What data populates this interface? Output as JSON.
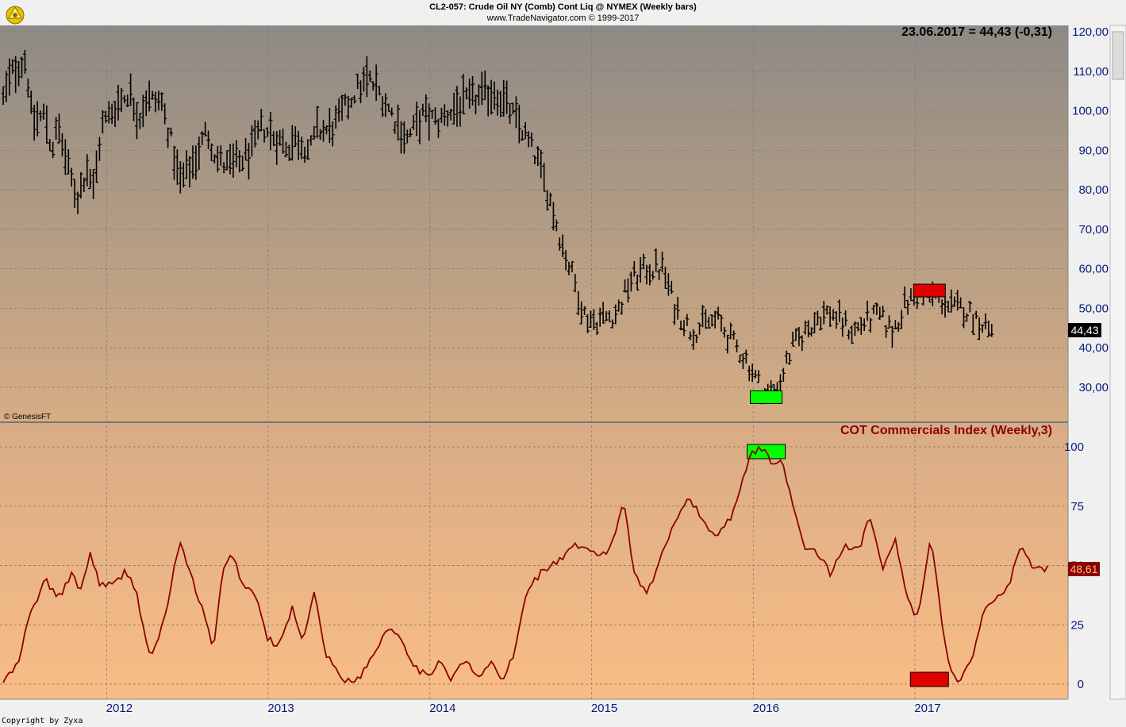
{
  "header": {
    "title": "CL2-057:  Crude Oil NY (Comb) Cont Liq @ NYMEX  (Weekly bars)",
    "subtitle": "www.TradeNavigator.com © 1999-2017"
  },
  "price_panel": {
    "readout": "23.06.2017 = 44,43 (-0,31)",
    "last_label": "44,43",
    "watermark": "© GenesisFT"
  },
  "cot_panel": {
    "title": "COT Commercials Index (Weekly,3)",
    "last_label": "48,61"
  },
  "footer": {
    "copyright": "Copyright by Zyxa"
  },
  "colors": {
    "price_bars": "#000000",
    "cot_line": "#8b0000",
    "signal_green": "#00ff00",
    "signal_red": "#e00000",
    "axis_text": "#0a1a7a",
    "cot_title": "#8b0000"
  },
  "chart_data": [
    {
      "type": "ohlc",
      "name": "price",
      "ylim": [
        22,
        122
      ],
      "yticks": [
        "120,00",
        "110,00",
        "100,00",
        "90,00",
        "80,00",
        "70,00",
        "60,00",
        "50,00",
        "40,00",
        "30,00"
      ],
      "ytick_values": [
        120,
        110,
        100,
        90,
        80,
        70,
        60,
        50,
        40,
        30
      ],
      "x_start": 2011.36,
      "x_end": 2017.48,
      "xticks": [
        "2012",
        "2013",
        "2014",
        "2015",
        "2016",
        "2017"
      ],
      "xtick_values": [
        2012,
        2013,
        2014,
        2015,
        2016,
        2017
      ],
      "anchors": [
        [
          2011.36,
          103
        ],
        [
          2011.42,
          110
        ],
        [
          2011.5,
          113
        ],
        [
          2011.54,
          97
        ],
        [
          2011.62,
          99
        ],
        [
          2011.66,
          90
        ],
        [
          2011.7,
          96
        ],
        [
          2011.77,
          84
        ],
        [
          2011.82,
          78
        ],
        [
          2011.88,
          86
        ],
        [
          2011.92,
          80
        ],
        [
          2011.97,
          96
        ],
        [
          2012.05,
          101
        ],
        [
          2012.14,
          105
        ],
        [
          2012.2,
          98
        ],
        [
          2012.24,
          103
        ],
        [
          2012.34,
          102
        ],
        [
          2012.4,
          92
        ],
        [
          2012.45,
          82
        ],
        [
          2012.49,
          84
        ],
        [
          2012.55,
          88
        ],
        [
          2012.62,
          95
        ],
        [
          2012.68,
          88
        ],
        [
          2012.74,
          86
        ],
        [
          2012.82,
          87
        ],
        [
          2012.9,
          90
        ],
        [
          2012.96,
          96
        ],
        [
          2013.05,
          93
        ],
        [
          2013.12,
          91
        ],
        [
          2013.18,
          93
        ],
        [
          2013.26,
          90
        ],
        [
          2013.3,
          95
        ],
        [
          2013.38,
          95
        ],
        [
          2013.44,
          98
        ],
        [
          2013.54,
          105
        ],
        [
          2013.62,
          108
        ],
        [
          2013.7,
          104
        ],
        [
          2013.78,
          98
        ],
        [
          2013.86,
          93
        ],
        [
          2013.96,
          99
        ],
        [
          2014.05,
          97
        ],
        [
          2014.16,
          101
        ],
        [
          2014.28,
          103
        ],
        [
          2014.4,
          105
        ],
        [
          2014.48,
          101
        ],
        [
          2014.56,
          96
        ],
        [
          2014.66,
          88
        ],
        [
          2014.74,
          78
        ],
        [
          2014.82,
          66
        ],
        [
          2014.9,
          56
        ],
        [
          2014.96,
          48
        ],
        [
          2015.02,
          47
        ],
        [
          2015.1,
          48
        ],
        [
          2015.16,
          49
        ],
        [
          2015.24,
          57
        ],
        [
          2015.34,
          60
        ],
        [
          2015.44,
          60
        ],
        [
          2015.52,
          50
        ],
        [
          2015.62,
          44
        ],
        [
          2015.7,
          46
        ],
        [
          2015.78,
          47
        ],
        [
          2015.86,
          42
        ],
        [
          2015.96,
          37
        ],
        [
          2016.02,
          32
        ],
        [
          2016.08,
          28
        ],
        [
          2016.16,
          31
        ],
        [
          2016.24,
          40
        ],
        [
          2016.32,
          44
        ],
        [
          2016.4,
          48
        ],
        [
          2016.48,
          49
        ],
        [
          2016.56,
          46
        ],
        [
          2016.62,
          44
        ],
        [
          2016.7,
          47
        ],
        [
          2016.78,
          48
        ],
        [
          2016.86,
          44
        ],
        [
          2016.94,
          51
        ],
        [
          2017.0,
          53
        ],
        [
          2017.08,
          53
        ],
        [
          2017.14,
          53
        ],
        [
          2017.22,
          50
        ],
        [
          2017.3,
          50
        ],
        [
          2017.4,
          47
        ],
        [
          2017.48,
          44.4
        ]
      ],
      "signals": [
        {
          "x": 2016.08,
          "price": 27.5,
          "color": "green"
        },
        {
          "x": 2017.09,
          "price": 54.5,
          "color": "red"
        }
      ]
    },
    {
      "type": "line",
      "name": "COT Commercials Index",
      "ylim": [
        -8,
        108
      ],
      "yticks": [
        "100",
        "75",
        "50",
        "25",
        "0"
      ],
      "ytick_values": [
        100,
        75,
        50,
        25,
        0
      ],
      "anchors": [
        [
          2011.36,
          1
        ],
        [
          2011.45,
          8
        ],
        [
          2011.52,
          28
        ],
        [
          2011.62,
          44
        ],
        [
          2011.7,
          36
        ],
        [
          2011.78,
          46
        ],
        [
          2011.84,
          40
        ],
        [
          2011.9,
          55
        ],
        [
          2011.96,
          42
        ],
        [
          2012.05,
          42
        ],
        [
          2012.12,
          48
        ],
        [
          2012.18,
          40
        ],
        [
          2012.27,
          10
        ],
        [
          2012.36,
          28
        ],
        [
          2012.45,
          60
        ],
        [
          2012.52,
          46
        ],
        [
          2012.6,
          30
        ],
        [
          2012.66,
          14
        ],
        [
          2012.72,
          48
        ],
        [
          2012.78,
          55
        ],
        [
          2012.84,
          42
        ],
        [
          2012.92,
          38
        ],
        [
          2012.99,
          20
        ],
        [
          2013.06,
          15
        ],
        [
          2013.15,
          32
        ],
        [
          2013.22,
          18
        ],
        [
          2013.28,
          40
        ],
        [
          2013.36,
          12
        ],
        [
          2013.46,
          2
        ],
        [
          2013.56,
          2
        ],
        [
          2013.66,
          14
        ],
        [
          2013.74,
          24
        ],
        [
          2013.82,
          20
        ],
        [
          2013.9,
          8
        ],
        [
          2014.0,
          2
        ],
        [
          2014.06,
          12
        ],
        [
          2014.12,
          2
        ],
        [
          2014.22,
          10
        ],
        [
          2014.3,
          2
        ],
        [
          2014.38,
          10
        ],
        [
          2014.44,
          1
        ],
        [
          2014.52,
          12
        ],
        [
          2014.6,
          40
        ],
        [
          2014.7,
          48
        ],
        [
          2014.8,
          52
        ],
        [
          2014.9,
          58
        ],
        [
          2015.0,
          56
        ],
        [
          2015.08,
          54
        ],
        [
          2015.14,
          62
        ],
        [
          2015.2,
          78
        ],
        [
          2015.26,
          48
        ],
        [
          2015.34,
          38
        ],
        [
          2015.44,
          55
        ],
        [
          2015.52,
          70
        ],
        [
          2015.6,
          79
        ],
        [
          2015.68,
          70
        ],
        [
          2015.76,
          62
        ],
        [
          2015.86,
          70
        ],
        [
          2015.94,
          88
        ],
        [
          2016.0,
          98
        ],
        [
          2016.06,
          100
        ],
        [
          2016.12,
          92
        ],
        [
          2016.18,
          96
        ],
        [
          2016.24,
          75
        ],
        [
          2016.32,
          58
        ],
        [
          2016.4,
          55
        ],
        [
          2016.48,
          46
        ],
        [
          2016.56,
          58
        ],
        [
          2016.66,
          58
        ],
        [
          2016.72,
          72
        ],
        [
          2016.8,
          48
        ],
        [
          2016.88,
          60
        ],
        [
          2016.96,
          34
        ],
        [
          2017.02,
          28
        ],
        [
          2017.1,
          62
        ],
        [
          2017.2,
          10
        ],
        [
          2017.26,
          1
        ],
        [
          2017.34,
          8
        ],
        [
          2017.42,
          30
        ],
        [
          2017.5,
          36
        ],
        [
          2017.58,
          42
        ],
        [
          2017.66,
          58
        ],
        [
          2017.74,
          48
        ],
        [
          2017.82,
          48.6
        ]
      ],
      "signals": [
        {
          "x": 2016.08,
          "value": 98,
          "color": "green"
        },
        {
          "x": 2017.09,
          "value": 2,
          "color": "red"
        }
      ]
    }
  ]
}
